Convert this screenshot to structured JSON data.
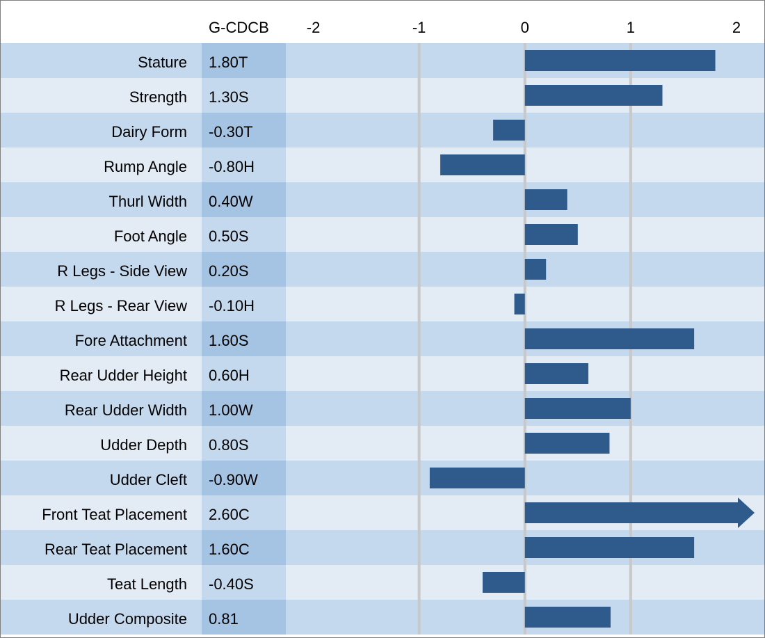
{
  "chart_data": {
    "type": "bar",
    "orientation": "horizontal",
    "value_header": "G-CDCB",
    "categories": [
      "Stature",
      "Strength",
      "Dairy Form",
      "Rump Angle",
      "Thurl Width",
      "Foot Angle",
      "R Legs - Side View",
      "R Legs - Rear View",
      "Fore Attachment",
      "Rear Udder Height",
      "Rear Udder Width",
      "Udder Depth",
      "Udder Cleft",
      "Front Teat Placement",
      "Rear Teat Placement",
      "Teat Length",
      "Udder Composite"
    ],
    "values": [
      1.8,
      1.3,
      -0.3,
      -0.8,
      0.4,
      0.5,
      0.2,
      -0.1,
      1.6,
      0.6,
      1.0,
      0.8,
      -0.9,
      2.6,
      1.6,
      -0.4,
      0.81
    ],
    "value_labels": [
      "1.80T",
      "1.30S",
      "-0.30T",
      "-0.80H",
      "0.40W",
      "0.50S",
      "0.20S",
      "-0.10H",
      "1.60S",
      "0.60H",
      "1.00W",
      "0.80S",
      "-0.90W",
      "2.60C",
      "1.60C",
      "-0.40S",
      "0.81"
    ],
    "color": "#2e5b8c",
    "xlim": [
      -2.26,
      2.25
    ],
    "xticks": [
      -2,
      -1,
      0,
      1,
      2
    ],
    "grid": true
  }
}
